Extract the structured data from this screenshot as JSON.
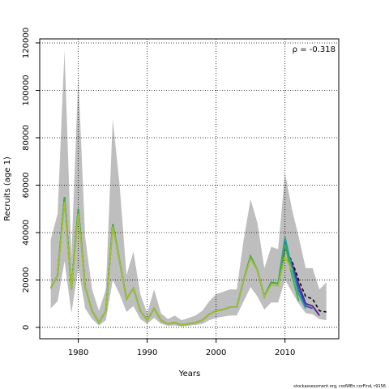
{
  "chart_data": {
    "type": "line",
    "xlabel": "Years",
    "ylabel": "Recruits (age 1)",
    "annotation": "ρ = -0.318",
    "footer": "stockassessment.org, codWEn corFind, r9156",
    "x": [
      1976,
      1977,
      1978,
      1979,
      1980,
      1981,
      1982,
      1983,
      1984,
      1985,
      1986,
      1987,
      1988,
      1989,
      1990,
      1991,
      1992,
      1993,
      1994,
      1995,
      1996,
      1997,
      1998,
      1999,
      2000,
      2001,
      2002,
      2003,
      2004,
      2005,
      2006,
      2007,
      2008,
      2009,
      2010,
      2011,
      2012,
      2013,
      2014,
      2015,
      2016
    ],
    "band": {
      "color": "#bebebe",
      "upper": [
        37000,
        48000,
        117000,
        30000,
        106000,
        38000,
        16000,
        7000,
        16000,
        88000,
        60000,
        22000,
        32000,
        14000,
        6000,
        16000,
        6000,
        3500,
        5000,
        3000,
        4000,
        5000,
        7000,
        11000,
        14000,
        15000,
        16000,
        16000,
        37000,
        54000,
        44000,
        25000,
        34000,
        33000,
        65000,
        50000,
        38000,
        25000,
        25000,
        16000,
        19000
      ],
      "lower": [
        8000,
        11000,
        28000,
        6000,
        25000,
        8000,
        3500,
        800,
        3000,
        20000,
        14000,
        6500,
        9000,
        3500,
        1500,
        4000,
        1500,
        700,
        800,
        400,
        700,
        1000,
        1500,
        3000,
        4000,
        4500,
        5000,
        5000,
        11000,
        17000,
        13000,
        7500,
        10500,
        10500,
        20000,
        15000,
        10000,
        6000,
        5500,
        3500,
        3000
      ]
    },
    "series": [
      {
        "color": "#000000",
        "dashed": true,
        "values": [
          16500,
          22000,
          55000,
          16000,
          50000,
          17000,
          7000,
          2000,
          7000,
          43500,
          28000,
          12000,
          16500,
          7000,
          3000,
          8000,
          3000,
          1500,
          2000,
          1000,
          1500,
          2000,
          3000,
          5500,
          7000,
          7500,
          8500,
          8500,
          20000,
          30000,
          24000,
          13000,
          19000,
          18500,
          33000,
          28000,
          20000,
          13000,
          12000,
          7000,
          6500
        ]
      },
      {
        "color": "#5a1e8c",
        "values": [
          16500,
          22000,
          55000,
          16000,
          50000,
          17000,
          7000,
          2000,
          7000,
          43500,
          28000,
          12000,
          16500,
          7000,
          3000,
          8000,
          3000,
          1500,
          2000,
          1000,
          1500,
          2000,
          3000,
          5500,
          7000,
          7500,
          8500,
          8500,
          20000,
          30000,
          24000,
          13000,
          19000,
          18500,
          34000,
          27000,
          18000,
          10000,
          9000,
          5000,
          null
        ]
      },
      {
        "color": "#3050c0",
        "values": [
          16500,
          22000,
          55000,
          16000,
          50000,
          17000,
          7000,
          2000,
          7000,
          43500,
          28000,
          12000,
          16500,
          7000,
          3000,
          8000,
          3000,
          1500,
          2000,
          1000,
          1500,
          2000,
          3000,
          5500,
          7000,
          7500,
          8500,
          8500,
          20000,
          30000,
          24000,
          13000,
          19000,
          18500,
          36000,
          26000,
          16000,
          9000,
          8000,
          null,
          null
        ]
      },
      {
        "color": "#20a0a0",
        "values": [
          16500,
          22000,
          55000,
          16000,
          50000,
          17000,
          7000,
          2000,
          7000,
          43500,
          28000,
          12000,
          16500,
          7000,
          3000,
          8000,
          3000,
          1500,
          2000,
          1000,
          1500,
          2000,
          3000,
          5500,
          7000,
          7500,
          8500,
          8500,
          20000,
          30000,
          24000,
          13000,
          19000,
          18500,
          38000,
          25000,
          14000,
          8000,
          null,
          null,
          null
        ]
      },
      {
        "color": "#40b040",
        "values": [
          16500,
          22000,
          55000,
          16000,
          50000,
          17000,
          7000,
          2000,
          7000,
          43500,
          28000,
          12000,
          16500,
          7000,
          3000,
          8000,
          3000,
          1500,
          2000,
          1000,
          1500,
          2000,
          3000,
          5500,
          7000,
          7500,
          8500,
          8500,
          20000,
          30000,
          24000,
          13000,
          19000,
          18500,
          35000,
          22000,
          11000,
          null,
          null,
          null,
          null
        ]
      },
      {
        "color": "#a0c030",
        "values": [
          16500,
          22000,
          53000,
          16000,
          48000,
          17000,
          7000,
          2000,
          7000,
          42500,
          28000,
          12000,
          16500,
          7000,
          3000,
          8000,
          3000,
          1500,
          2000,
          1000,
          1500,
          2000,
          3000,
          5500,
          7000,
          7500,
          8500,
          8500,
          20000,
          29000,
          24000,
          13000,
          18000,
          17500,
          30000,
          24000,
          null,
          null,
          null,
          null,
          null
        ]
      }
    ],
    "xlim": [
      1974.4,
      2017.8
    ],
    "ylim": [
      -4800,
      121700
    ],
    "xticks": [
      1980,
      1990,
      2000,
      2010
    ],
    "yticks": [
      0,
      20000,
      40000,
      60000,
      80000,
      100000,
      120000
    ],
    "grid": true
  }
}
